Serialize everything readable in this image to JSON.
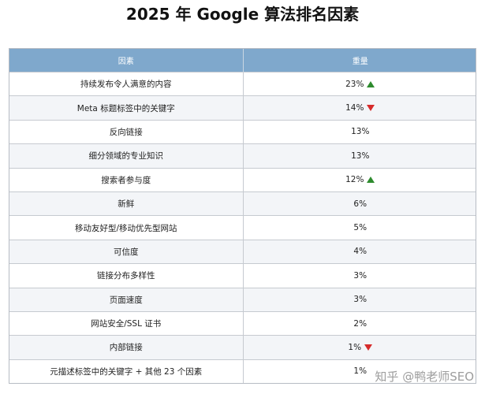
{
  "title": "2025 年 Google 算法排名因素",
  "table": {
    "headers": [
      "因素",
      "重量"
    ],
    "rows": [
      {
        "factor": "持续发布令人满意的内容",
        "weight": "23%",
        "trend": "up"
      },
      {
        "factor": "Meta 标题标签中的关键字",
        "weight": "14%",
        "trend": "down"
      },
      {
        "factor": "反向链接",
        "weight": "13%",
        "trend": ""
      },
      {
        "factor": "细分领域的专业知识",
        "weight": "13%",
        "trend": ""
      },
      {
        "factor": "搜索者参与度",
        "weight": "12%",
        "trend": "up"
      },
      {
        "factor": "新鲜",
        "weight": "6%",
        "trend": ""
      },
      {
        "factor": "移动友好型/移动优先型网站",
        "weight": "5%",
        "trend": ""
      },
      {
        "factor": "可信度",
        "weight": "4%",
        "trend": ""
      },
      {
        "factor": "链接分布多样性",
        "weight": "3%",
        "trend": ""
      },
      {
        "factor": "页面速度",
        "weight": "3%",
        "trend": ""
      },
      {
        "factor": "网站安全/SSL 证书",
        "weight": "2%",
        "trend": ""
      },
      {
        "factor": "内部链接",
        "weight": "1%",
        "trend": "down"
      },
      {
        "factor": "元描述标签中的关键字 + 其他 23 个因素",
        "weight": "1%",
        "trend": ""
      }
    ]
  },
  "colors": {
    "header_bg": "#7fa8cc",
    "up": "#2e8b2e",
    "down": "#d62b2b"
  },
  "watermark": "知乎 @鸭老师SEO"
}
